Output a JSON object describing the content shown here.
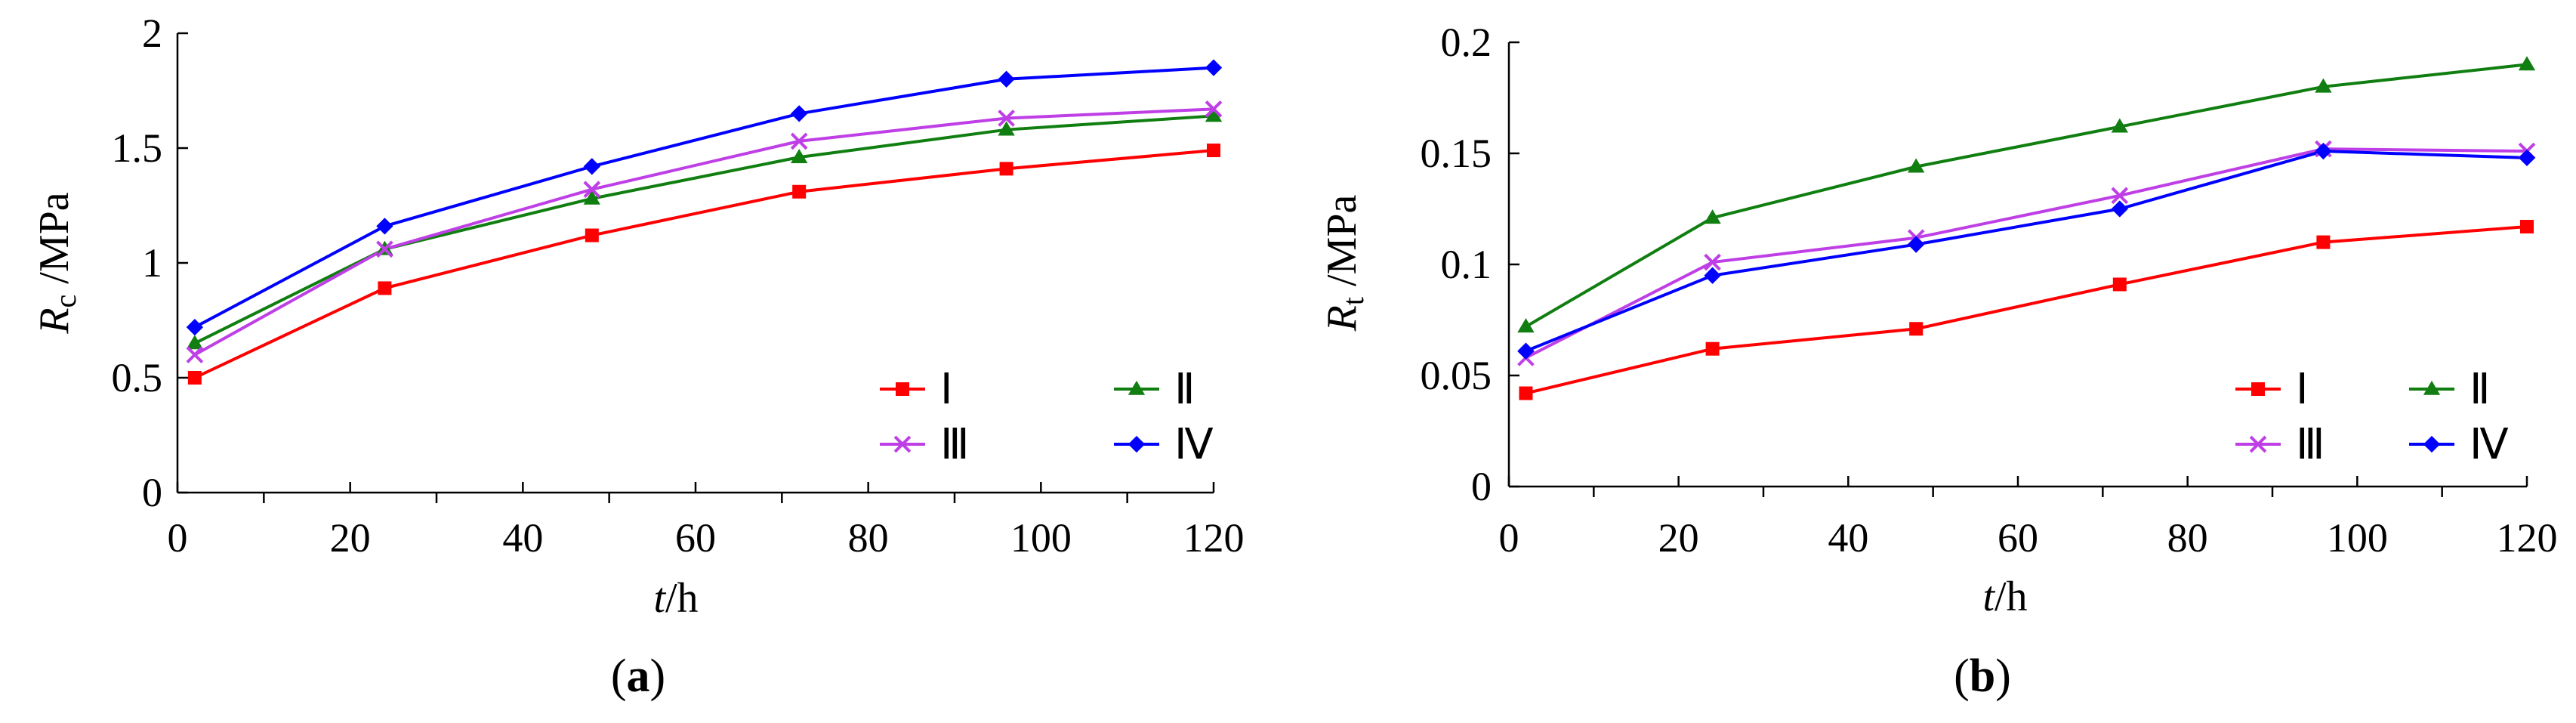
{
  "colors": {
    "I": "#ff0000",
    "II": "#107e10",
    "III": "#bf3fe6",
    "IV": "#0000ff"
  },
  "chart_data": [
    {
      "panel": "a",
      "panel_label": "a",
      "type": "line",
      "xlabel_var": "t",
      "xlabel_unit": "/h",
      "ylabel_var": "R",
      "ylabel_sub": "c",
      "ylabel_unit": " /MPa",
      "xlim": [
        0,
        120
      ],
      "ylim": [
        0,
        2
      ],
      "xticks": [
        0,
        20,
        40,
        60,
        80,
        100,
        120
      ],
      "xtick_labels": [
        "0",
        "20",
        "40",
        "60",
        "80",
        "100",
        "120"
      ],
      "yticks": [
        0,
        0.5,
        1,
        1.5,
        2
      ],
      "ytick_labels": [
        "0",
        "0.5",
        "1",
        "1.5",
        "2"
      ],
      "x": [
        2,
        24,
        48,
        72,
        96,
        120
      ],
      "series": [
        {
          "key": "I",
          "name": "Ⅰ",
          "marker": "square",
          "values": [
            0.5,
            0.89,
            1.12,
            1.31,
            1.41,
            1.49
          ]
        },
        {
          "key": "II",
          "name": "Ⅱ",
          "marker": "triangle",
          "values": [
            0.65,
            1.06,
            1.28,
            1.46,
            1.58,
            1.64
          ]
        },
        {
          "key": "III",
          "name": "Ⅲ",
          "marker": "x",
          "values": [
            0.6,
            1.06,
            1.32,
            1.53,
            1.63,
            1.67
          ]
        },
        {
          "key": "IV",
          "name": "Ⅳ",
          "marker": "diamond",
          "values": [
            0.72,
            1.16,
            1.42,
            1.65,
            1.8,
            1.85
          ]
        }
      ],
      "legend_position": "bottom-right"
    },
    {
      "panel": "b",
      "panel_label": "b",
      "type": "line",
      "xlabel_var": "t",
      "xlabel_unit": "/h",
      "ylabel_var": "R",
      "ylabel_sub": "t",
      "ylabel_unit": " /MPa",
      "xlim": [
        0,
        120
      ],
      "ylim": [
        0,
        0.2
      ],
      "xticks": [
        0,
        20,
        40,
        60,
        80,
        100,
        120
      ],
      "xtick_labels": [
        "0",
        "20",
        "40",
        "60",
        "80",
        "100",
        "120"
      ],
      "yticks": [
        0,
        0.05,
        0.1,
        0.15,
        0.2
      ],
      "ytick_labels": [
        "0",
        "0.05",
        "0.1",
        "0.15",
        "0.2"
      ],
      "x": [
        2,
        24,
        48,
        72,
        96,
        120
      ],
      "series": [
        {
          "key": "I",
          "name": "Ⅰ",
          "marker": "square",
          "values": [
            0.042,
            0.062,
            0.071,
            0.091,
            0.11,
            0.117
          ]
        },
        {
          "key": "II",
          "name": "Ⅱ",
          "marker": "triangle",
          "values": [
            0.072,
            0.121,
            0.144,
            0.162,
            0.18,
            0.19
          ]
        },
        {
          "key": "III",
          "name": "Ⅲ",
          "marker": "x",
          "values": [
            0.058,
            0.101,
            0.112,
            0.131,
            0.152,
            0.151
          ]
        },
        {
          "key": "IV",
          "name": "Ⅳ",
          "marker": "diamond",
          "values": [
            0.061,
            0.095,
            0.109,
            0.125,
            0.151,
            0.148
          ]
        }
      ],
      "legend_position": "bottom-right"
    }
  ]
}
